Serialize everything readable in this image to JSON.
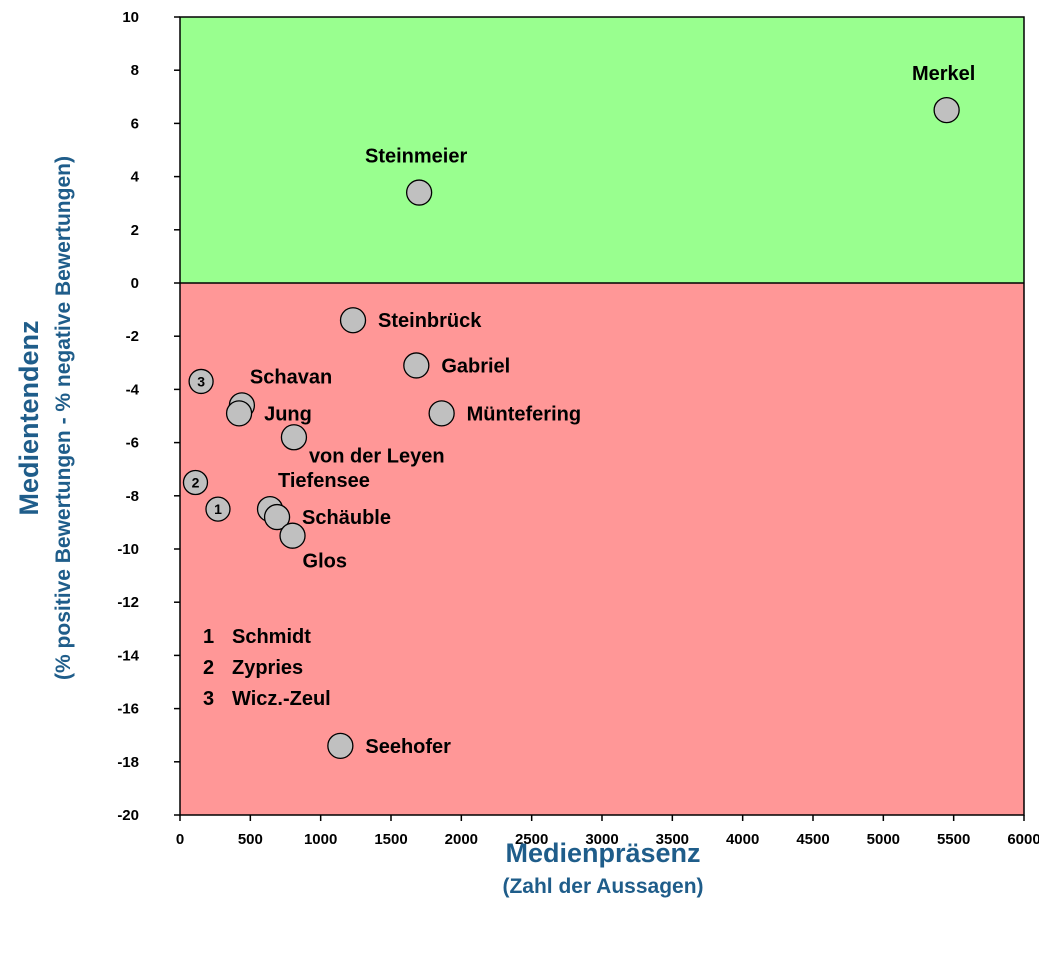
{
  "chart_data": {
    "type": "scatter",
    "xlabel": "Medienpräsenz",
    "xlabel_sub": "(Zahl der Aussagen)",
    "ylabel": "Medientendenz",
    "ylabel_sub": "(% positive Bewertungen - % negative Bewertungen)",
    "xlim": [
      0,
      6000
    ],
    "ylim": [
      -20,
      10
    ],
    "x_ticks": [
      0,
      500,
      1000,
      1500,
      2000,
      2500,
      3000,
      3500,
      4000,
      4500,
      5000,
      5500,
      6000
    ],
    "y_ticks": [
      10,
      8,
      6,
      4,
      2,
      0,
      -2,
      -4,
      -6,
      -8,
      -10,
      -12,
      -14,
      -16,
      -18,
      -20
    ],
    "grid": false,
    "regions": [
      {
        "name": "positive",
        "y_from": 0,
        "y_to": 10,
        "color": "#99ff8f"
      },
      {
        "name": "negative",
        "y_from": -20,
        "y_to": 0,
        "color": "#ff9797"
      }
    ],
    "point_color": "#c0c0c0",
    "points": [
      {
        "label": "Merkel",
        "x": 5450,
        "y": 6.5,
        "label_pos": "above"
      },
      {
        "label": "Steinmeier",
        "x": 1700,
        "y": 3.4,
        "label_pos": "above"
      },
      {
        "label": "Steinbrück",
        "x": 1230,
        "y": -1.4,
        "label_pos": "right"
      },
      {
        "label": "Gabriel",
        "x": 1680,
        "y": -3.1,
        "label_pos": "right"
      },
      {
        "label": "Müntefering",
        "x": 1860,
        "y": -4.9,
        "label_pos": "right"
      },
      {
        "label": "Schavan",
        "x": 440,
        "y": -4.6,
        "label_pos": "above-right"
      },
      {
        "label": "Jung",
        "x": 420,
        "y": -4.9,
        "label_pos": "right"
      },
      {
        "label": "von der Leyen",
        "x": 810,
        "y": -5.8,
        "label_pos": "below-right"
      },
      {
        "label": "Tiefensee",
        "x": 640,
        "y": -8.5,
        "label_pos": "above-right"
      },
      {
        "label": "Schäuble",
        "x": 690,
        "y": -8.8,
        "label_pos": "right"
      },
      {
        "label": "Glos",
        "x": 800,
        "y": -9.5,
        "label_pos": "below"
      },
      {
        "label": "Seehofer",
        "x": 1140,
        "y": -17.4,
        "label_pos": "right"
      },
      {
        "label": "1",
        "x": 270,
        "y": -8.5,
        "numbered": true
      },
      {
        "label": "2",
        "x": 110,
        "y": -7.5,
        "numbered": true
      },
      {
        "label": "3",
        "x": 150,
        "y": -3.7,
        "numbered": true
      }
    ],
    "legend": [
      {
        "num": "1",
        "name": "Schmidt"
      },
      {
        "num": "2",
        "name": "Zypries"
      },
      {
        "num": "3",
        "name": "Wicz.-Zeul"
      }
    ]
  }
}
